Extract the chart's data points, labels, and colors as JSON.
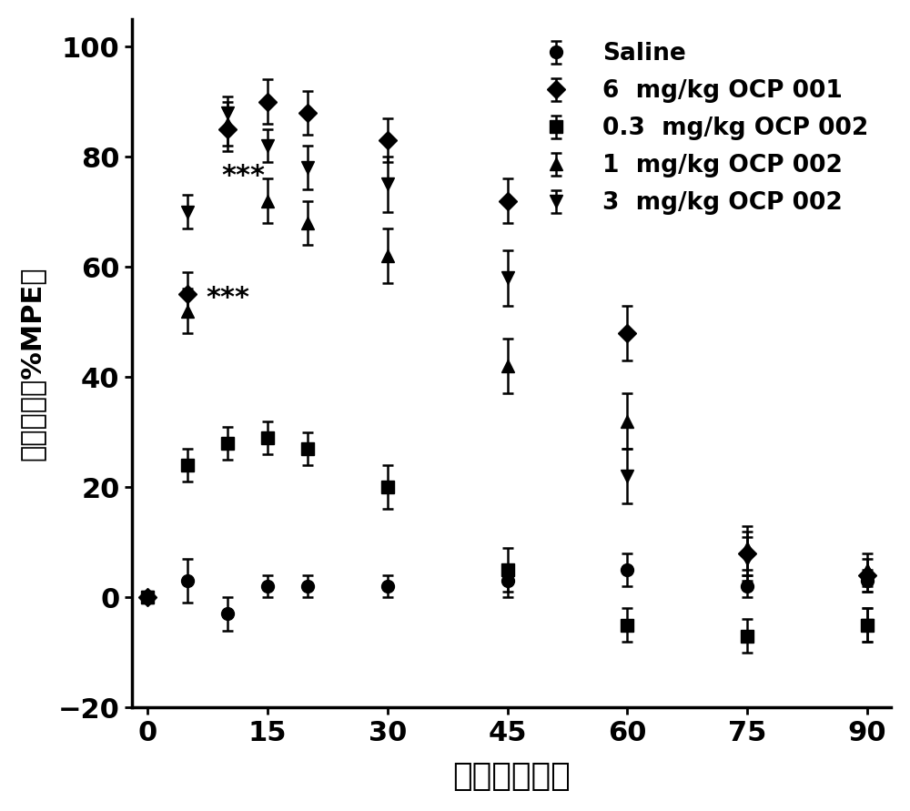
{
  "x": [
    0,
    5,
    10,
    15,
    20,
    30,
    45,
    60,
    75,
    90
  ],
  "series": {
    "Saline": {
      "y": [
        0,
        3,
        -3,
        2,
        2,
        2,
        3,
        5,
        2,
        3
      ],
      "yerr": [
        1,
        4,
        3,
        2,
        2,
        2,
        3,
        3,
        2,
        2
      ],
      "marker": "o",
      "label": "Saline"
    },
    "OCP001_6": {
      "y": [
        0,
        55,
        85,
        90,
        88,
        83,
        72,
        48,
        8,
        4
      ],
      "yerr": [
        1,
        4,
        4,
        4,
        4,
        4,
        4,
        5,
        4,
        3
      ],
      "marker": "D",
      "label": "6  mg/kg OCP 001"
    },
    "OCP002_03": {
      "y": [
        0,
        24,
        28,
        29,
        27,
        20,
        5,
        -5,
        -7,
        -5
      ],
      "yerr": [
        1,
        3,
        3,
        3,
        3,
        4,
        4,
        3,
        3,
        3
      ],
      "marker": "s",
      "label": "0.3  mg/kg OCP 002"
    },
    "OCP002_1": {
      "y": [
        0,
        52,
        86,
        72,
        68,
        62,
        42,
        32,
        9,
        5
      ],
      "yerr": [
        1,
        4,
        4,
        4,
        4,
        5,
        5,
        5,
        4,
        3
      ],
      "marker": "^",
      "label": "1  mg/kg OCP 002"
    },
    "OCP002_3": {
      "y": [
        0,
        70,
        88,
        82,
        78,
        75,
        58,
        22,
        7,
        -5
      ],
      "yerr": [
        1,
        3,
        3,
        3,
        4,
        5,
        5,
        5,
        4,
        3
      ],
      "marker": "v",
      "label": "3  mg/kg OCP 002"
    }
  },
  "xlabel": "时间（分钟）",
  "ylabel": "镇痛效应（%MPE）",
  "xticks": [
    0,
    15,
    30,
    45,
    60,
    75,
    90
  ],
  "yticks": [
    -20,
    0,
    20,
    40,
    60,
    80,
    100
  ],
  "ylim": [
    -20,
    105
  ],
  "xlim": [
    -2,
    93
  ],
  "line_color": "#000000",
  "star1_text": "***",
  "star1_x": 12,
  "star1_y": 75,
  "star2_text": "***",
  "star2_x": 10,
  "star2_y": 53
}
